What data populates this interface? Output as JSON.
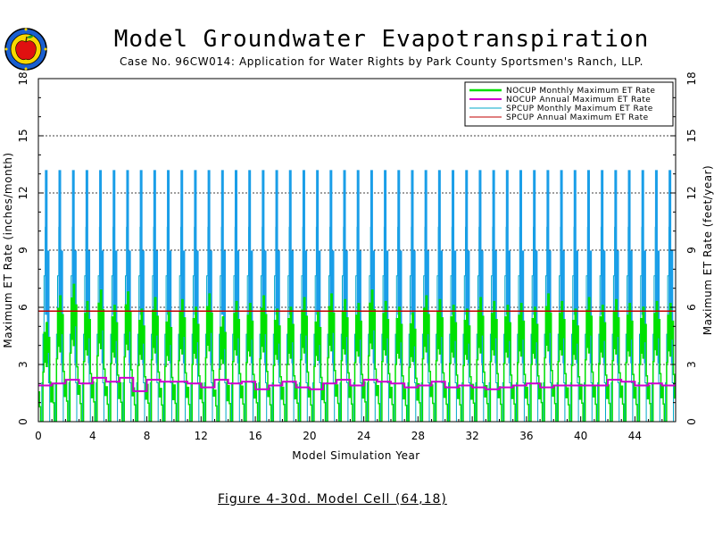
{
  "header": {
    "title": "Model Groundwater Evapotranspiration",
    "subtitle": "Case No. 96CW014: Application for Water Rights by Park County Sportsmen's Ranch, LLP."
  },
  "figure_caption": "Figure 4-30d.  Model Cell (64,18)",
  "chart_data": {
    "type": "line",
    "xlabel": "Model Simulation Year",
    "ylabel_left": "Maximum ET Rate (inches/month)",
    "ylabel_right": "Maximum ET Rate (feet/year)",
    "xlim": [
      0,
      47
    ],
    "ylim_left": [
      0,
      18
    ],
    "ylim_right": [
      0,
      18
    ],
    "x_ticks": [
      "0",
      "4",
      "8",
      "12",
      "16",
      "20",
      "24",
      "28",
      "32",
      "36",
      "40",
      "44"
    ],
    "y_ticks_left": [
      "0",
      "3",
      "6",
      "9",
      "12",
      "15",
      "18"
    ],
    "y_ticks_right": [
      "0",
      "3",
      "6",
      "9",
      "12",
      "15",
      "18"
    ],
    "dashed_gridlines_y": [
      3,
      6,
      9,
      12,
      15
    ],
    "legend_position": "top-right",
    "spcup_monthly_peak": 13.2,
    "spcup_monthly_shoulder": 10.2,
    "spcup_monthly_base": 0,
    "spcup_annual": 5.8,
    "nocup_monthly_peaks": [
      5.2,
      6.6,
      7.2,
      6.3,
      6.9,
      6.1,
      6.8,
      5.9,
      6.5,
      5.8,
      6.4,
      6.0,
      6.7,
      5.5,
      6.3,
      6.2,
      6.6,
      5.9,
      6.0,
      6.5,
      5.8,
      6.7,
      6.4,
      6.2,
      6.9,
      6.3,
      6.0,
      5.7,
      6.6,
      6.4,
      6.1,
      5.9,
      6.5,
      6.3,
      6.1,
      6.2,
      6.0,
      6.7,
      6.3,
      5.9,
      6.5,
      6.1,
      6.4,
      6.2,
      6.0,
      6.3,
      6.2,
      6.4
    ],
    "nocup_annual": [
      1.9,
      2.0,
      2.2,
      2.0,
      2.3,
      2.1,
      2.3,
      1.6,
      2.2,
      2.1,
      2.1,
      2.0,
      1.8,
      2.2,
      2.0,
      2.1,
      1.7,
      1.9,
      2.1,
      1.8,
      1.7,
      2.0,
      2.2,
      1.9,
      2.2,
      2.1,
      2.0,
      1.8,
      1.9,
      2.1,
      1.8,
      1.9,
      1.8,
      1.7,
      1.8,
      1.9,
      2.0,
      1.8,
      1.9,
      1.9,
      1.9,
      1.9,
      2.2,
      2.1,
      1.9,
      2.0,
      1.9,
      2.0
    ],
    "series": [
      {
        "name": "NOCUP Monthly Maximum ET Rate",
        "color": "#00e000"
      },
      {
        "name": "NOCUP Annual Maximum ET Rate",
        "color": "#d000d0"
      },
      {
        "name": "SPCUP Monthly Maximum ET Rate",
        "color": "#00a8c8"
      },
      {
        "name": "SPCUP Annual Maximum ET Rate",
        "color": "#c00000"
      }
    ]
  }
}
